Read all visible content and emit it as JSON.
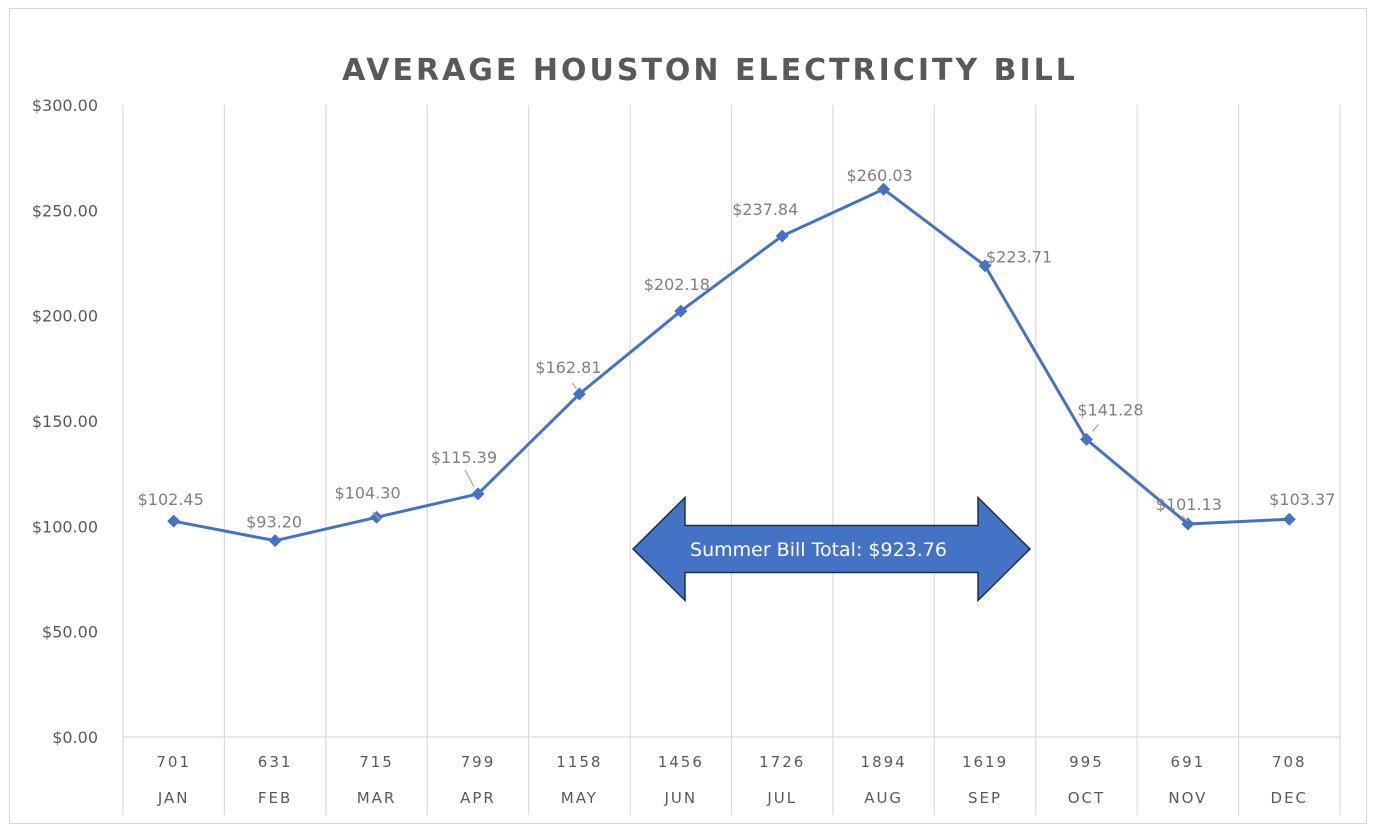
{
  "chart_data": {
    "type": "line",
    "title": "AVERAGE HOUSTON ELECTRICITY BILL",
    "categories": [
      "JAN",
      "FEB",
      "MAR",
      "APR",
      "MAY",
      "JUN",
      "JUL",
      "AUG",
      "SEP",
      "OCT",
      "NOV",
      "DEC"
    ],
    "category_values": [
      "701",
      "631",
      "715",
      "799",
      "1158",
      "1456",
      "1726",
      "1894",
      "1619",
      "995",
      "691",
      "708"
    ],
    "series": [
      {
        "values": [
          102.45,
          93.2,
          104.3,
          115.39,
          162.81,
          202.18,
          237.84,
          260.03,
          223.71,
          141.28,
          101.13,
          103.37
        ]
      }
    ],
    "data_labels": [
      "$102.45",
      "$93.20",
      "$104.30",
      "$115.39",
      "$162.81",
      "$202.18",
      "$237.84",
      "$260.03",
      "$223.71",
      "$141.28",
      "$101.13",
      "$103.37"
    ],
    "y_ticks": [
      "$0.00",
      "$50.00",
      "$100.00",
      "$150.00",
      "$200.00",
      "$250.00",
      "$300.00"
    ],
    "ylim": [
      0,
      300
    ],
    "grid": "vertical",
    "line_color": "#4472c4",
    "annotation": {
      "text": "Summer Bill Total: $923.76",
      "fill": "#4472c4",
      "span": [
        "JUN",
        "SEP"
      ]
    }
  }
}
